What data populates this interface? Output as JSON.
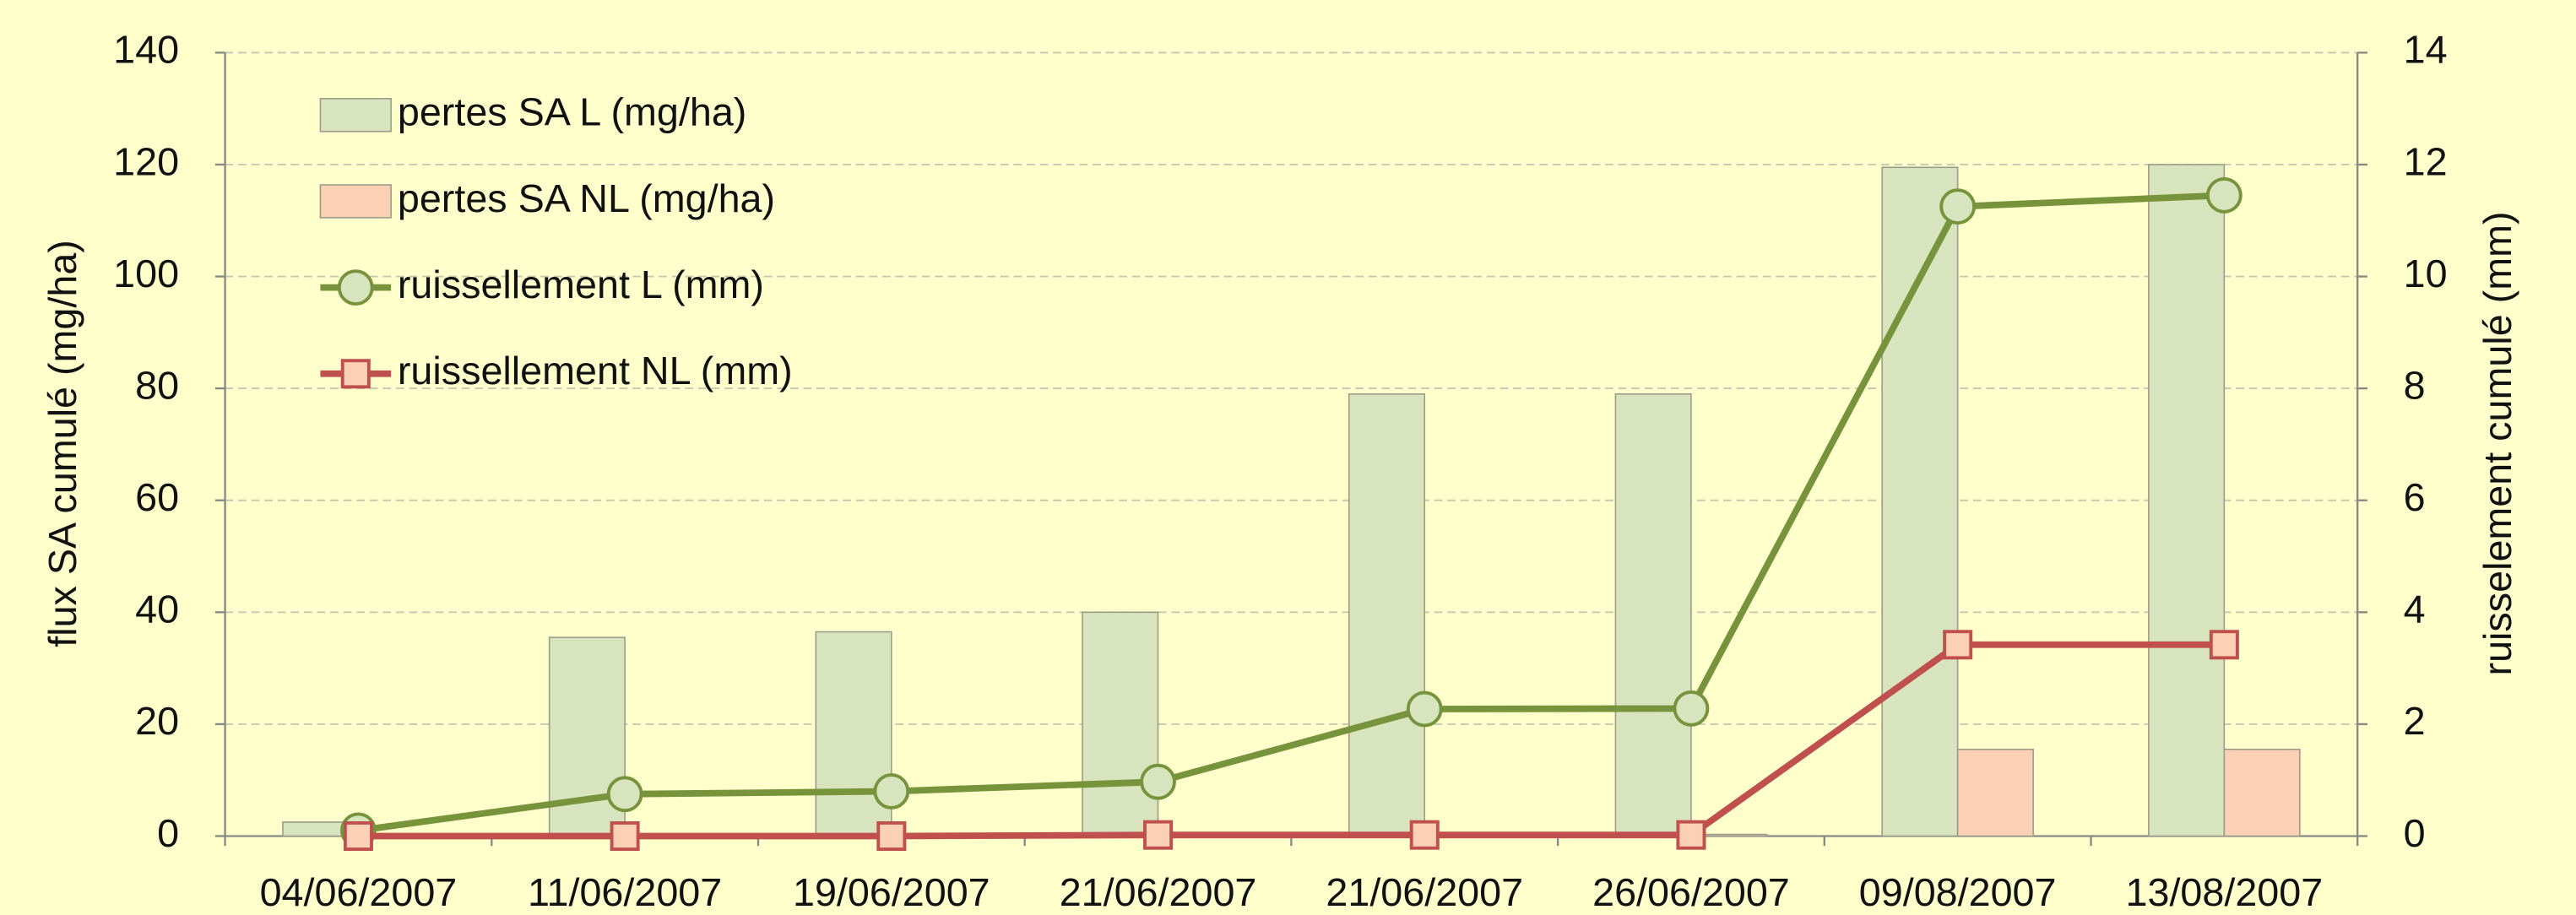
{
  "chart_data": {
    "type": "bar",
    "categories": [
      "04/06/2007",
      "11/06/2007",
      "19/06/2007",
      "21/06/2007",
      "21/06/2007",
      "26/06/2007",
      "09/08/2007",
      "13/08/2007"
    ],
    "y_label": "flux SA cumulé (mg/ha)",
    "y2_label": "ruisselement cumulé (mm)",
    "ylim": [
      0,
      140
    ],
    "yticks": [
      0,
      20,
      40,
      60,
      80,
      100,
      120,
      140
    ],
    "y2lim": [
      0,
      14
    ],
    "y2ticks": [
      0,
      2,
      4,
      6,
      8,
      10,
      12,
      14
    ],
    "grid": true,
    "legend": "top-left",
    "series": [
      {
        "name": "pertes SA L (mg/ha)",
        "type": "bar",
        "color": "#d7e4bd",
        "values": [
          2.5,
          35.5,
          36.5,
          40,
          79,
          79,
          119.5,
          120
        ]
      },
      {
        "name": "pertes SA NL (mg/ha)",
        "type": "bar",
        "color": "#fbd0b5",
        "values": [
          0,
          0,
          0,
          0,
          0,
          0.3,
          15.5,
          15.5
        ]
      },
      {
        "name": "ruissellement L (mm)",
        "type": "line",
        "axis": "y2",
        "color": "#77933c",
        "values": [
          0.1,
          0.75,
          0.8,
          0.97,
          2.27,
          2.28,
          11.25,
          11.45
        ]
      },
      {
        "name": "ruissellement NL (mm)",
        "type": "line",
        "axis": "y2",
        "color": "#c0504d",
        "values": [
          0,
          0,
          0,
          0.02,
          0.02,
          0.02,
          3.42,
          3.42
        ]
      }
    ]
  }
}
